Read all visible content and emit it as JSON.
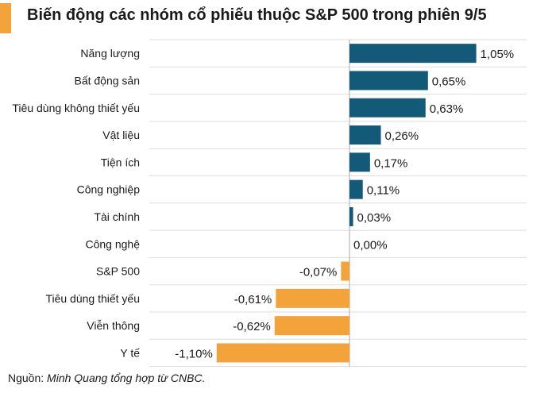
{
  "title": "Biến động các nhóm cổ phiếu thuộc S&P 500 trong phiên 9/5",
  "source": {
    "prefix": "Nguồn: ",
    "text": "Minh Quang tổng hợp từ CNBC."
  },
  "colors": {
    "positive": "#135a78",
    "negative": "#f4a23a",
    "accent": "#f4a23a",
    "grid": "#dddddd",
    "zero_line": "#aaaaaa"
  },
  "chart_data": {
    "type": "bar",
    "orientation": "horizontal",
    "title": "Biến động các nhóm cổ phiếu thuộc S&P 500 trong phiên 9/5",
    "xlabel": "",
    "ylabel": "",
    "unit": "%",
    "categories": [
      "Năng lượng",
      "Bất động sản",
      "Tiêu dùng không thiết yếu",
      "Vật liệu",
      "Tiện ích",
      "Công nghiệp",
      "Tài chính",
      "Công nghệ",
      "S&P 500",
      "Tiêu dùng thiết yếu",
      "Viễn thông",
      "Y tế"
    ],
    "values": [
      1.05,
      0.65,
      0.63,
      0.26,
      0.17,
      0.11,
      0.03,
      0.0,
      -0.07,
      -0.61,
      -0.62,
      -1.1
    ],
    "value_labels": [
      "1,05%",
      "0,65%",
      "0,63%",
      "0,26%",
      "0,17%",
      "0,11%",
      "0,03%",
      "0,00%",
      "-0,07%",
      "-0,61%",
      "-0,62%",
      "-1,10%"
    ],
    "xlim": [
      -1.1,
      1.05
    ]
  }
}
